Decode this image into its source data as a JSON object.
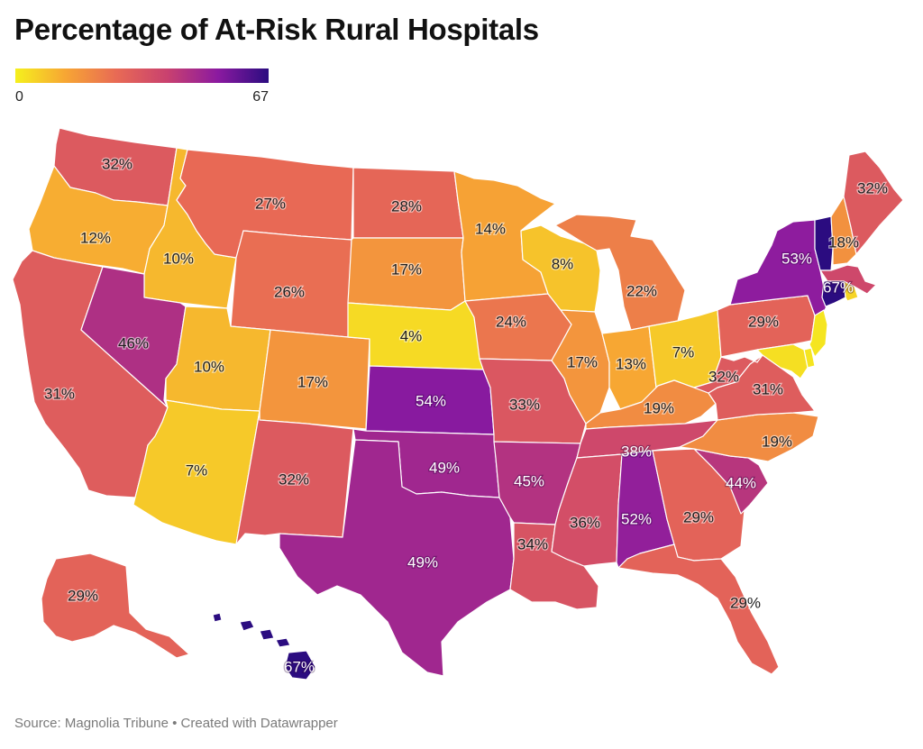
{
  "title": "Percentage of At-Risk Rural Hospitals",
  "legend": {
    "min_label": "0",
    "max_label": "67",
    "stops": [
      "#f5f01d",
      "#f7a534",
      "#e86a55",
      "#c9416f",
      "#8b1aa0",
      "#2b0c80"
    ]
  },
  "source": "Source: Magnolia Tribune • Created with Datawrapper",
  "states": [
    {
      "id": "WA",
      "label": "32%",
      "value": 32
    },
    {
      "id": "OR",
      "label": "12%",
      "value": 12
    },
    {
      "id": "CA",
      "label": "31%",
      "value": 31
    },
    {
      "id": "ID",
      "label": "10%",
      "value": 10
    },
    {
      "id": "NV",
      "label": "46%",
      "value": 46
    },
    {
      "id": "MT",
      "label": "27%",
      "value": 27
    },
    {
      "id": "WY",
      "label": "26%",
      "value": 26
    },
    {
      "id": "UT",
      "label": "10%",
      "value": 10
    },
    {
      "id": "AZ",
      "label": "7%",
      "value": 7
    },
    {
      "id": "CO",
      "label": "17%",
      "value": 17
    },
    {
      "id": "NM",
      "label": "32%",
      "value": 32
    },
    {
      "id": "ND",
      "label": "28%",
      "value": 28
    },
    {
      "id": "SD",
      "label": "17%",
      "value": 17
    },
    {
      "id": "NE",
      "label": "4%",
      "value": 4
    },
    {
      "id": "KS",
      "label": "54%",
      "value": 54
    },
    {
      "id": "OK",
      "label": "49%",
      "value": 49
    },
    {
      "id": "TX",
      "label": "49%",
      "value": 49
    },
    {
      "id": "MN",
      "label": "14%",
      "value": 14
    },
    {
      "id": "IA",
      "label": "24%",
      "value": 24
    },
    {
      "id": "MO",
      "label": "33%",
      "value": 33
    },
    {
      "id": "AR",
      "label": "45%",
      "value": 45
    },
    {
      "id": "LA",
      "label": "34%",
      "value": 34
    },
    {
      "id": "WI",
      "label": "8%",
      "value": 8
    },
    {
      "id": "IL",
      "label": "17%",
      "value": 17
    },
    {
      "id": "MI",
      "label": "22%",
      "value": 22
    },
    {
      "id": "IN",
      "label": "13%",
      "value": 13
    },
    {
      "id": "OH",
      "label": "7%",
      "value": 7
    },
    {
      "id": "KY",
      "label": "19%",
      "value": 19
    },
    {
      "id": "TN",
      "label": "38%",
      "value": 38
    },
    {
      "id": "MS",
      "label": "36%",
      "value": 36
    },
    {
      "id": "AL",
      "label": "52%",
      "value": 52
    },
    {
      "id": "GA",
      "label": "29%",
      "value": 29
    },
    {
      "id": "FL",
      "label": "29%",
      "value": 29
    },
    {
      "id": "SC",
      "label": "44%",
      "value": 44
    },
    {
      "id": "NC",
      "label": "19%",
      "value": 19
    },
    {
      "id": "VA",
      "label": "31%",
      "value": 31
    },
    {
      "id": "WV",
      "label": "32%",
      "value": 32
    },
    {
      "id": "PA",
      "label": "29%",
      "value": 29
    },
    {
      "id": "NY",
      "label": "53%",
      "value": 53
    },
    {
      "id": "VT",
      "label": "",
      "value": 67
    },
    {
      "id": "NH",
      "label": "18%",
      "value": 18
    },
    {
      "id": "ME",
      "label": "32%",
      "value": 32
    },
    {
      "id": "MA",
      "label": "",
      "value": 38
    },
    {
      "id": "CT",
      "label": "67%",
      "value": 67
    },
    {
      "id": "RI",
      "label": "",
      "value": 5
    },
    {
      "id": "NJ",
      "label": "",
      "value": 2
    },
    {
      "id": "DE",
      "label": "",
      "value": 2
    },
    {
      "id": "MD",
      "label": "",
      "value": 3
    },
    {
      "id": "AK",
      "label": "29%",
      "value": 29
    },
    {
      "id": "HI",
      "label": "67%",
      "value": 67
    }
  ]
}
